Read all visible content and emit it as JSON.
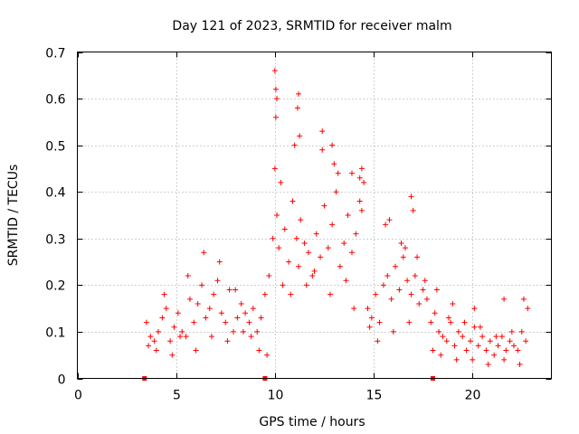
{
  "chart_data": {
    "type": "scatter",
    "title": "Day 121 of 2023, SRMTID for receiver malm",
    "xlabel": "GPS time / hours",
    "ylabel": "SRMTID / TECUs",
    "xlim": [
      0,
      24
    ],
    "ylim": [
      0,
      0.7
    ],
    "x_ticks": [
      0,
      5,
      10,
      15,
      20
    ],
    "y_ticks": [
      0,
      0.1,
      0.2,
      0.3,
      0.4,
      0.5,
      0.6,
      0.7
    ],
    "x_tick_labels": [
      "0",
      "5",
      "10",
      "15",
      "20"
    ],
    "y_tick_labels": [
      "0",
      "0.1",
      "0.2",
      "0.3",
      "0.4",
      "0.5",
      "0.6",
      "0.7"
    ],
    "grid": true,
    "series_color": "#ff0000",
    "series": [
      {
        "name": "SRMTID",
        "marker": "plus",
        "x": [
          3.5,
          3.7,
          3.9,
          4.1,
          4.3,
          4.5,
          4.7,
          4.9,
          5.1,
          5.3,
          5.5,
          5.7,
          5.9,
          6.1,
          6.3,
          6.5,
          6.7,
          6.9,
          7.1,
          7.3,
          7.5,
          7.7,
          7.9,
          8.1,
          8.3,
          8.5,
          8.7,
          8.9,
          9.1,
          9.3,
          9.5,
          9.7,
          9.9,
          10.0,
          10.1,
          10.2,
          10.3,
          10.5,
          10.7,
          10.9,
          11.0,
          11.1,
          11.2,
          11.3,
          11.5,
          11.7,
          11.9,
          12.1,
          12.3,
          12.5,
          12.7,
          12.9,
          13.1,
          13.3,
          13.5,
          13.7,
          13.9,
          14.1,
          14.3,
          14.5,
          14.7,
          14.9,
          15.1,
          15.3,
          15.5,
          15.7,
          15.9,
          16.1,
          16.3,
          16.5,
          16.7,
          16.9,
          17.1,
          17.3,
          17.5,
          17.7,
          17.9,
          18.1,
          18.3,
          18.5,
          18.7,
          18.9,
          19.1,
          19.3,
          19.5,
          19.7,
          19.9,
          20.1,
          20.3,
          20.5,
          20.7,
          20.9,
          21.1,
          21.3,
          21.5,
          21.7,
          21.9,
          22.1,
          22.3,
          22.5,
          22.7,
          3.6,
          4.0,
          4.4,
          4.8,
          5.2,
          5.6,
          6.0,
          6.4,
          6.8,
          7.2,
          7.6,
          8.0,
          8.4,
          8.8,
          9.2,
          9.6,
          10.05,
          10.4,
          10.8,
          11.15,
          11.6,
          12.0,
          12.4,
          12.8,
          13.2,
          13.6,
          14.0,
          14.4,
          14.8,
          15.2,
          15.6,
          16.0,
          16.4,
          16.8,
          17.2,
          17.6,
          18.0,
          18.4,
          18.8,
          19.2,
          19.6,
          20.0,
          20.4,
          20.8,
          21.2,
          21.6,
          22.0,
          22.4,
          22.8,
          10.0,
          10.05,
          10.1,
          11.2,
          11.25,
          12.4,
          12.9,
          13.0,
          13.9,
          14.3,
          14.4,
          15.8,
          16.6,
          16.9,
          17.0,
          18.2,
          19.0,
          20.1,
          21.6,
          22.6
        ],
        "y": [
          0.12,
          0.09,
          0.08,
          0.1,
          0.13,
          0.15,
          0.08,
          0.11,
          0.14,
          0.1,
          0.09,
          0.17,
          0.12,
          0.16,
          0.2,
          0.13,
          0.15,
          0.18,
          0.21,
          0.14,
          0.12,
          0.19,
          0.1,
          0.13,
          0.16,
          0.14,
          0.12,
          0.15,
          0.1,
          0.13,
          0.18,
          0.22,
          0.3,
          0.45,
          0.35,
          0.28,
          0.42,
          0.32,
          0.25,
          0.38,
          0.5,
          0.3,
          0.24,
          0.34,
          0.29,
          0.27,
          0.22,
          0.31,
          0.26,
          0.37,
          0.28,
          0.33,
          0.4,
          0.24,
          0.29,
          0.35,
          0.27,
          0.31,
          0.38,
          0.42,
          0.15,
          0.13,
          0.18,
          0.12,
          0.2,
          0.22,
          0.17,
          0.24,
          0.19,
          0.26,
          0.21,
          0.18,
          0.22,
          0.16,
          0.19,
          0.17,
          0.12,
          0.14,
          0.1,
          0.09,
          0.08,
          0.12,
          0.07,
          0.1,
          0.09,
          0.06,
          0.08,
          0.11,
          0.07,
          0.09,
          0.06,
          0.08,
          0.05,
          0.07,
          0.09,
          0.06,
          0.08,
          0.07,
          0.06,
          0.1,
          0.08,
          0.07,
          0.06,
          0.18,
          0.05,
          0.09,
          0.22,
          0.06,
          0.27,
          0.09,
          0.25,
          0.08,
          0.19,
          0.1,
          0.09,
          0.06,
          0.05,
          0.62,
          0.2,
          0.18,
          0.58,
          0.2,
          0.23,
          0.49,
          0.18,
          0.44,
          0.21,
          0.15,
          0.36,
          0.11,
          0.08,
          0.33,
          0.1,
          0.29,
          0.12,
          0.26,
          0.21,
          0.06,
          0.05,
          0.13,
          0.04,
          0.12,
          0.04,
          0.11,
          0.03,
          0.09,
          0.04,
          0.1,
          0.03,
          0.15,
          0.66,
          0.56,
          0.6,
          0.61,
          0.52,
          0.53,
          0.5,
          0.46,
          0.44,
          0.43,
          0.45,
          0.34,
          0.28,
          0.39,
          0.36,
          0.19,
          0.16,
          0.15,
          0.17,
          0.17
        ]
      }
    ],
    "axis_markers_x": [
      3.4,
      9.5,
      18.0
    ]
  }
}
